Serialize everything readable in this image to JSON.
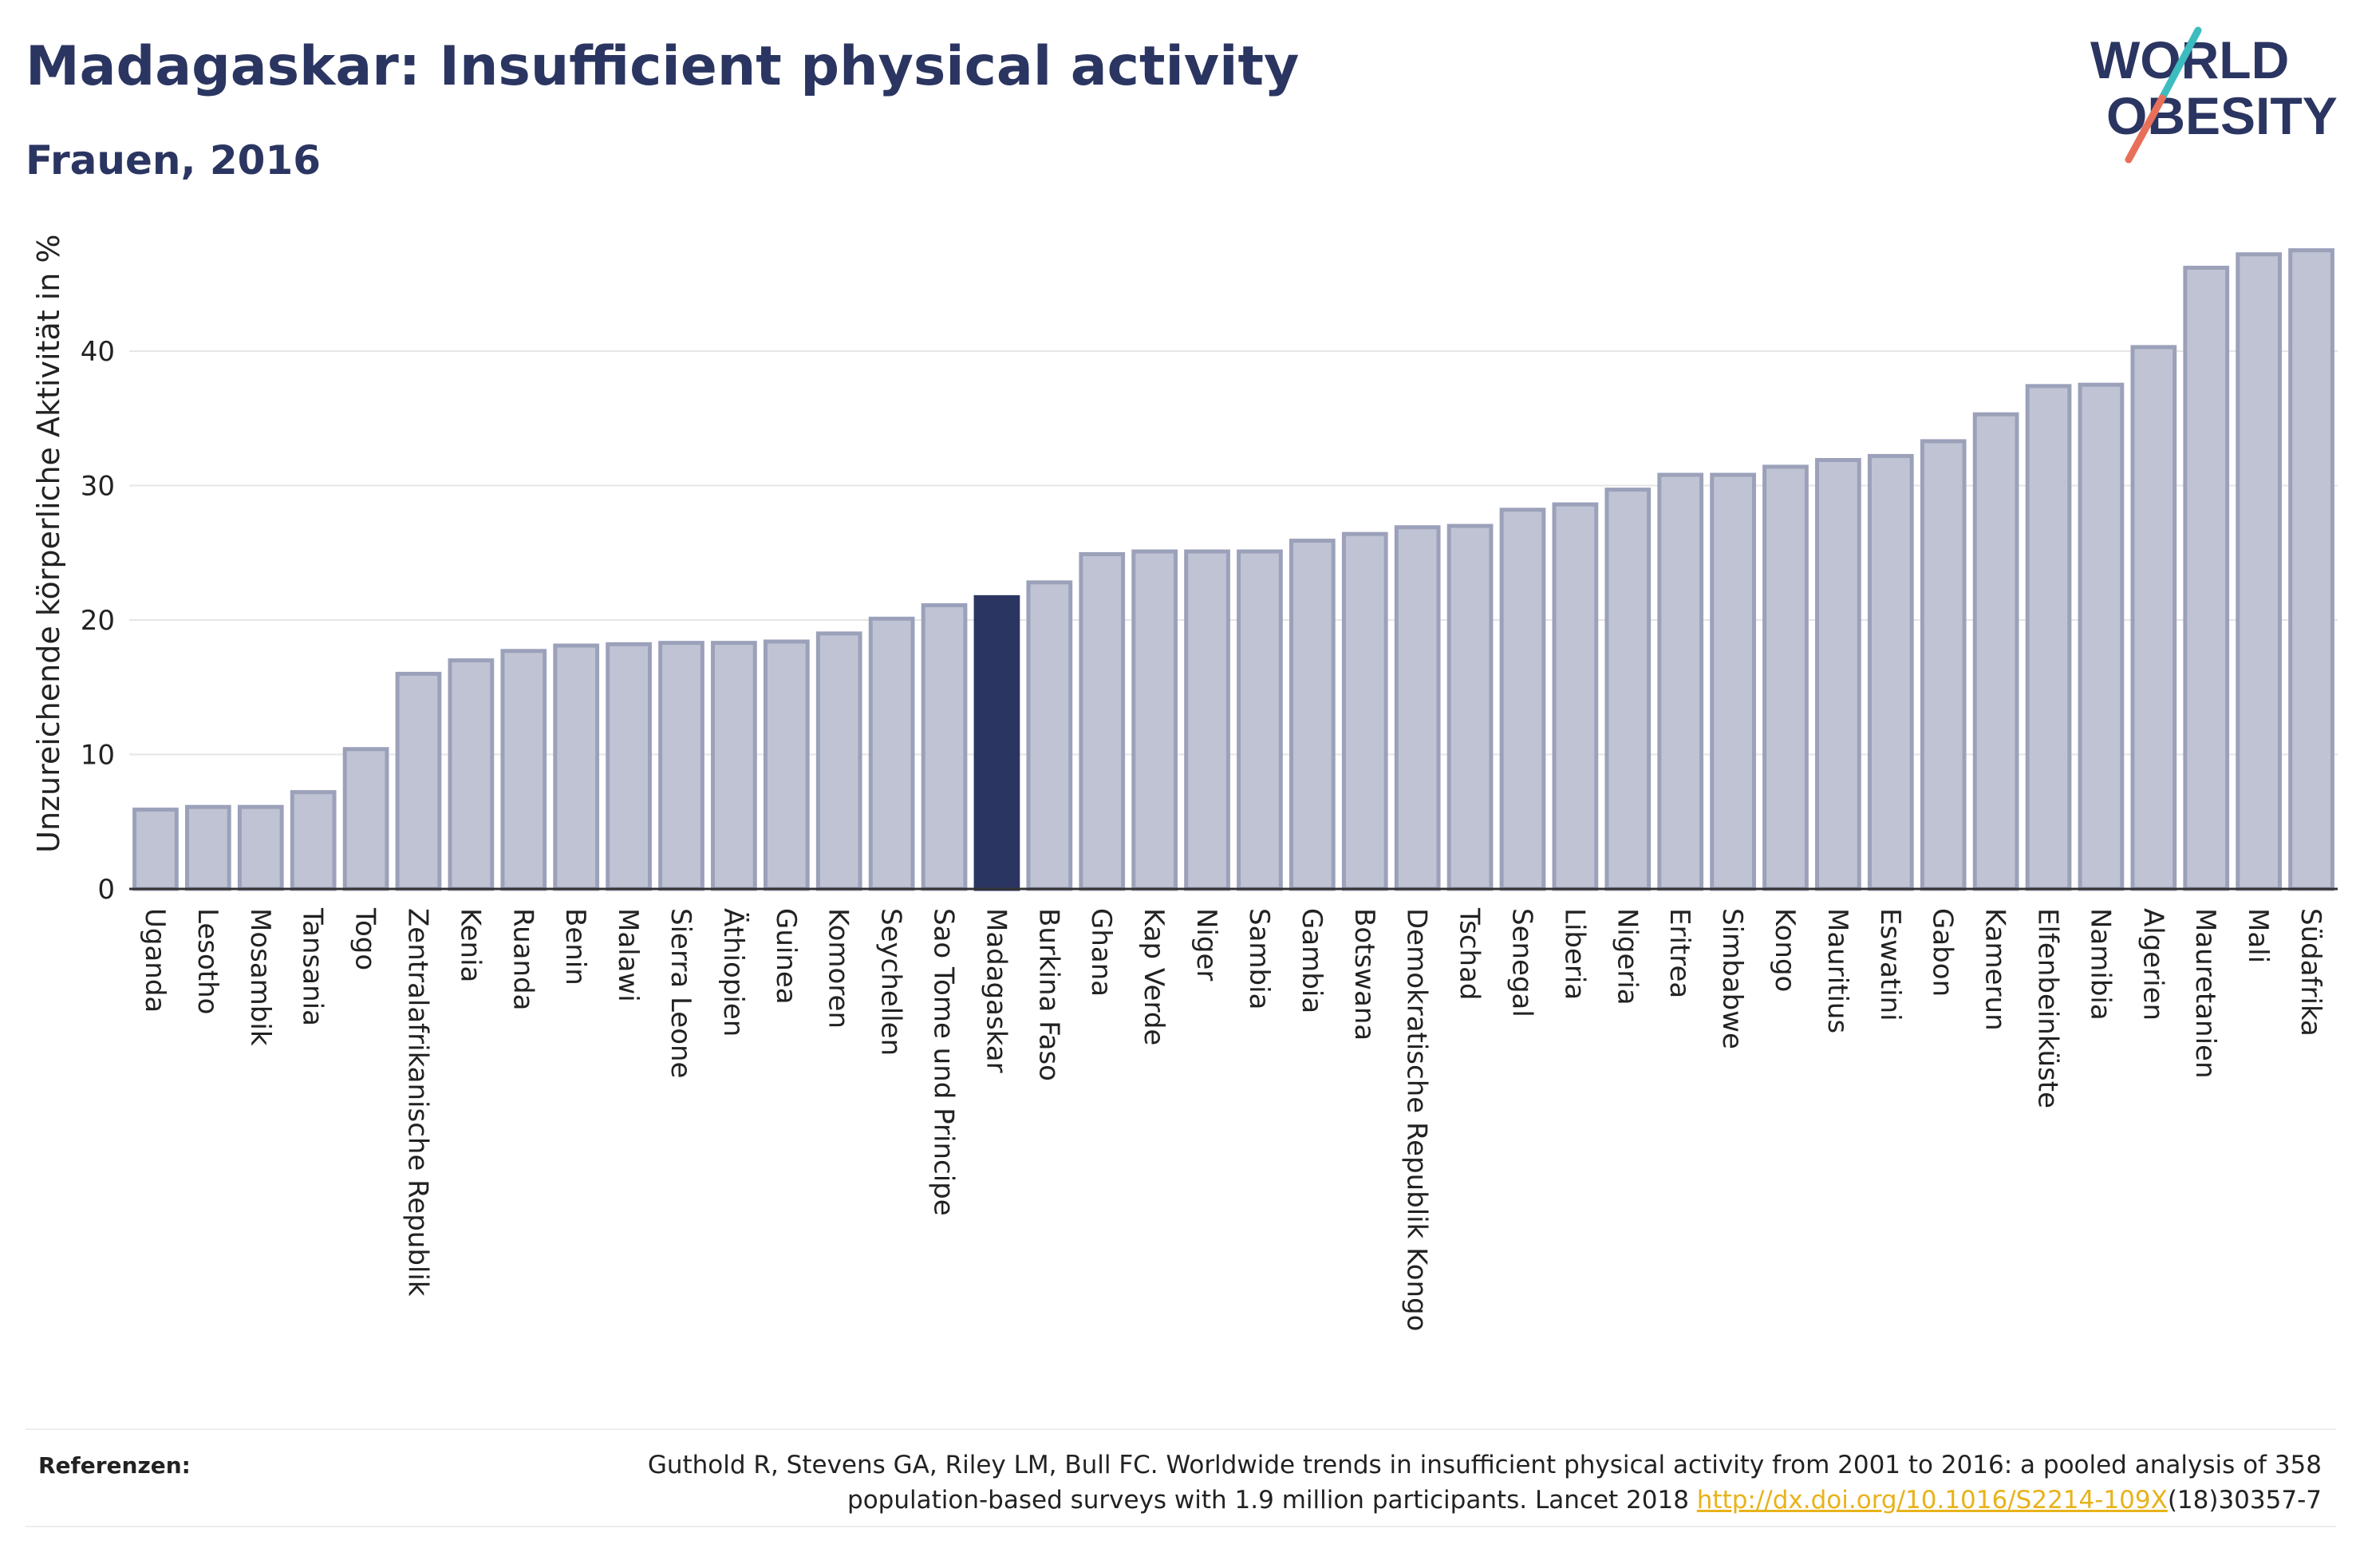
{
  "header": {
    "title": "Madagaskar: Insufficient physical activity",
    "subtitle": "Frauen, 2016"
  },
  "logo": {
    "line1": "WORLD",
    "line2": "OBESITY",
    "colors": {
      "text": "#2b3561",
      "slash_teal": "#3dbcbf",
      "slash_red": "#e8705a"
    }
  },
  "colors": {
    "bar_fill": "#bfc3d3",
    "bar_stroke": "#9ca1ba",
    "highlight": "#2b3561",
    "grid": "#e6e6e6",
    "axis": "#333333"
  },
  "chart_data": {
    "type": "bar",
    "ylabel": "Unzureichende körperliche Aktivität in %",
    "xlabel": "",
    "ylim": [
      0,
      49
    ],
    "yticks": [
      0,
      10,
      20,
      30,
      40
    ],
    "grid": true,
    "highlight": "Madagaskar",
    "categories": [
      "Uganda",
      "Lesotho",
      "Mosambik",
      "Tansania",
      "Togo",
      "Zentralafrikanische Republik",
      "Kenia",
      "Ruanda",
      "Benin",
      "Malawi",
      "Sierra Leone",
      "Äthiopien",
      "Guinea",
      "Komoren",
      "Seychellen",
      "Sao Tome und Principe",
      "Madagaskar",
      "Burkina Faso",
      "Ghana",
      "Kap Verde",
      "Niger",
      "Sambia",
      "Gambia",
      "Botswana",
      "Demokratische Republik Kongo",
      "Tschad",
      "Senegal",
      "Liberia",
      "Nigeria",
      "Eritrea",
      "Simbabwe",
      "Kongo",
      "Mauritius",
      "Eswatini",
      "Gabon",
      "Kamerun",
      "Elfenbeinküste",
      "Namibia",
      "Algerien",
      "Mauretanien",
      "Mali",
      "Südafrika"
    ],
    "values": [
      5.9,
      6.1,
      6.1,
      7.2,
      10.4,
      16.0,
      17.0,
      17.7,
      18.1,
      18.2,
      18.3,
      18.3,
      18.4,
      19.0,
      20.1,
      21.1,
      21.7,
      22.8,
      24.9,
      25.1,
      25.1,
      25.1,
      25.9,
      26.4,
      26.9,
      27.0,
      28.2,
      28.6,
      29.7,
      30.8,
      30.8,
      31.4,
      31.9,
      32.2,
      33.3,
      35.3,
      37.4,
      37.5,
      40.3,
      46.2,
      47.2,
      47.5
    ]
  },
  "references": {
    "label": "Referenzen:",
    "line1": "Guthold R, Stevens GA, Riley LM, Bull FC. Worldwide trends in insufficient physical activity from 2001 to 2016: a pooled analysis of 358",
    "line2_prefix": "population-based surveys with 1.9 million participants. Lancet 2018 ",
    "link": "http://dx.doi.org/10.1016/S2214-109X",
    "line2_suffix": "(18)30357-7"
  }
}
